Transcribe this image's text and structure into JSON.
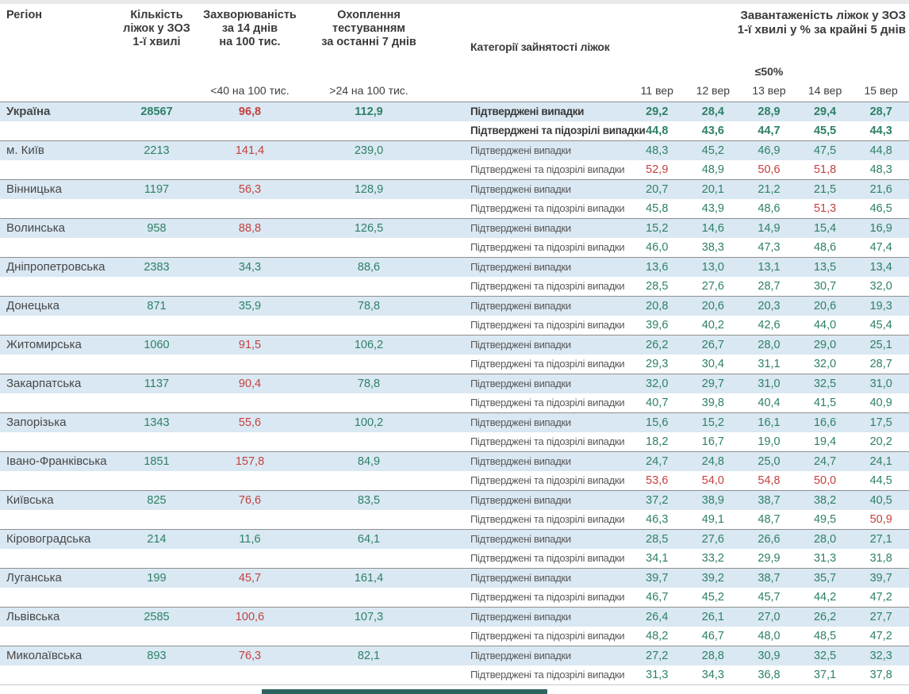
{
  "colors": {
    "green": "#2e8065",
    "red": "#c5403d",
    "row_blue": "#d9e8f3",
    "header_text": "#3a3a3a",
    "border_dark": "#8f8f8f",
    "bottom_bar": "#2e6360"
  },
  "header": {
    "region": "Регіон",
    "beds": "Кількість\nліжок у ЗОЗ\n1-ї хвилі",
    "incidence": "Захворюваність\nза 14 днів\nна 100 тис.",
    "testing": "Охоплення\nтестуванням\nза останні 7 днів",
    "category": "Категорії зайнятості ліжок",
    "occupancy": "Завантаженість ліжок у ЗОЗ\n1-ї хвилі у % за крайні 5 днів",
    "incidence_threshold": "<40 на 100 тис.",
    "testing_threshold": ">24 на 100 тис.",
    "occupancy_threshold": "≤50%",
    "dates": [
      "11 вер",
      "12 вер",
      "13 вер",
      "14 вер",
      "15 вер"
    ]
  },
  "row_labels": {
    "confirmed": "Підтверджені випадки",
    "confirmed_suspected": "Підтверджені та підозрілі випадки"
  },
  "thresholds": {
    "incidence_red_at": 40,
    "occupancy_red_at": 50
  },
  "regions": [
    {
      "name": "Україна",
      "bold": true,
      "beds": "28567",
      "incidence": "96,8",
      "testing": "112,9",
      "confirmed": [
        "29,2",
        "28,4",
        "28,9",
        "29,4",
        "28,7"
      ],
      "confirmed_suspected": [
        "44,8",
        "43,6",
        "44,7",
        "45,5",
        "44,3"
      ]
    },
    {
      "name": "м. Київ",
      "bold": false,
      "beds": "2213",
      "incidence": "141,4",
      "testing": "239,0",
      "confirmed": [
        "48,3",
        "45,2",
        "46,9",
        "47,5",
        "44,8"
      ],
      "confirmed_suspected": [
        "52,9",
        "48,9",
        "50,6",
        "51,8",
        "48,3"
      ]
    },
    {
      "name": "Вінницька",
      "bold": false,
      "beds": "1197",
      "incidence": "56,3",
      "testing": "128,9",
      "confirmed": [
        "20,7",
        "20,1",
        "21,2",
        "21,5",
        "21,6"
      ],
      "confirmed_suspected": [
        "45,8",
        "43,9",
        "48,6",
        "51,3",
        "46,5"
      ]
    },
    {
      "name": "Волинська",
      "bold": false,
      "beds": "958",
      "incidence": "88,8",
      "testing": "126,5",
      "confirmed": [
        "15,2",
        "14,6",
        "14,9",
        "15,4",
        "16,9"
      ],
      "confirmed_suspected": [
        "46,0",
        "38,3",
        "47,3",
        "48,6",
        "47,4"
      ]
    },
    {
      "name": "Дніпропетровська",
      "bold": false,
      "beds": "2383",
      "incidence": "34,3",
      "testing": "88,6",
      "confirmed": [
        "13,6",
        "13,0",
        "13,1",
        "13,5",
        "13,4"
      ],
      "confirmed_suspected": [
        "28,5",
        "27,6",
        "28,7",
        "30,7",
        "32,0"
      ]
    },
    {
      "name": "Донецька",
      "bold": false,
      "beds": "871",
      "incidence": "35,9",
      "testing": "78,8",
      "confirmed": [
        "20,8",
        "20,6",
        "20,3",
        "20,6",
        "19,3"
      ],
      "confirmed_suspected": [
        "39,6",
        "40,2",
        "42,6",
        "44,0",
        "45,4"
      ]
    },
    {
      "name": "Житомирська",
      "bold": false,
      "beds": "1060",
      "incidence": "91,5",
      "testing": "106,2",
      "confirmed": [
        "26,2",
        "26,7",
        "28,0",
        "29,0",
        "25,1"
      ],
      "confirmed_suspected": [
        "29,3",
        "30,4",
        "31,1",
        "32,0",
        "28,7"
      ]
    },
    {
      "name": "Закарпатська",
      "bold": false,
      "beds": "1137",
      "incidence": "90,4",
      "testing": "78,8",
      "confirmed": [
        "32,0",
        "29,7",
        "31,0",
        "32,5",
        "31,0"
      ],
      "confirmed_suspected": [
        "40,7",
        "39,8",
        "40,4",
        "41,5",
        "40,9"
      ]
    },
    {
      "name": "Запорізька",
      "bold": false,
      "beds": "1343",
      "incidence": "55,6",
      "testing": "100,2",
      "confirmed": [
        "15,6",
        "15,2",
        "16,1",
        "16,6",
        "17,5"
      ],
      "confirmed_suspected": [
        "18,2",
        "16,7",
        "19,0",
        "19,4",
        "20,2"
      ]
    },
    {
      "name": "Івано-Франківська",
      "bold": false,
      "beds": "1851",
      "incidence": "157,8",
      "testing": "84,9",
      "confirmed": [
        "24,7",
        "24,8",
        "25,0",
        "24,7",
        "24,1"
      ],
      "confirmed_suspected": [
        "53,6",
        "54,0",
        "54,8",
        "50,0",
        "44,5"
      ]
    },
    {
      "name": "Київська",
      "bold": false,
      "beds": "825",
      "incidence": "76,6",
      "testing": "83,5",
      "confirmed": [
        "37,2",
        "38,9",
        "38,7",
        "38,2",
        "40,5"
      ],
      "confirmed_suspected": [
        "46,3",
        "49,1",
        "48,7",
        "49,5",
        "50,9"
      ]
    },
    {
      "name": "Кіровоградська",
      "bold": false,
      "beds": "214",
      "incidence": "11,6",
      "testing": "64,1",
      "confirmed": [
        "28,5",
        "27,6",
        "26,6",
        "28,0",
        "27,1"
      ],
      "confirmed_suspected": [
        "34,1",
        "33,2",
        "29,9",
        "31,3",
        "31,8"
      ]
    },
    {
      "name": "Луганська",
      "bold": false,
      "beds": "199",
      "incidence": "45,7",
      "testing": "161,4",
      "confirmed": [
        "39,7",
        "39,2",
        "38,7",
        "35,7",
        "39,7"
      ],
      "confirmed_suspected": [
        "46,7",
        "45,2",
        "45,7",
        "44,2",
        "47,2"
      ]
    },
    {
      "name": "Львівська",
      "bold": false,
      "beds": "2585",
      "incidence": "100,6",
      "testing": "107,3",
      "confirmed": [
        "26,4",
        "26,1",
        "27,0",
        "26,2",
        "27,7"
      ],
      "confirmed_suspected": [
        "48,2",
        "46,7",
        "48,0",
        "48,5",
        "47,2"
      ]
    },
    {
      "name": "Миколаївська",
      "bold": false,
      "beds": "893",
      "incidence": "76,3",
      "testing": "82,1",
      "confirmed": [
        "27,2",
        "28,8",
        "30,9",
        "32,5",
        "32,3"
      ],
      "confirmed_suspected": [
        "31,3",
        "34,3",
        "36,8",
        "37,1",
        "37,8"
      ]
    }
  ]
}
